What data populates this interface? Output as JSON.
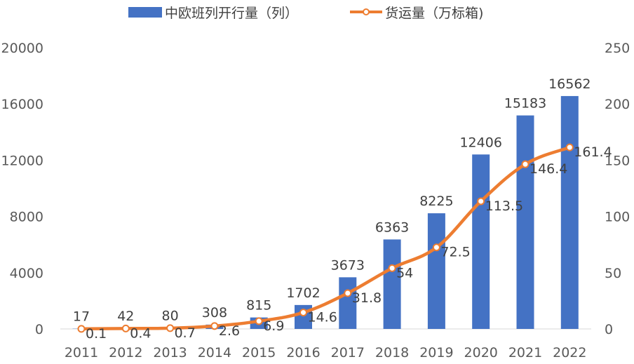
{
  "chart_data": {
    "type": "bar",
    "categories": [
      "2011",
      "2012",
      "2013",
      "2014",
      "2015",
      "2016",
      "2017",
      "2018",
      "2019",
      "2020",
      "2021",
      "2022"
    ],
    "series": [
      {
        "name": "中欧班列开行量（列）",
        "type": "bar",
        "axis": "left",
        "color": "#4472C4",
        "values": [
          17,
          42,
          80,
          308,
          815,
          1702,
          3673,
          6363,
          8225,
          12406,
          15183,
          16562
        ],
        "labels": [
          "17",
          "42",
          "80",
          "308",
          "815",
          "1702",
          "3673",
          "6363",
          "8225",
          "12406",
          "15183",
          "16562"
        ]
      },
      {
        "name": "货运量（万标箱)",
        "type": "line",
        "axis": "right",
        "color": "#ED7D31",
        "values": [
          0.1,
          0.4,
          0.7,
          2.6,
          6.9,
          14.6,
          31.8,
          54,
          72.5,
          113.5,
          146.4,
          161.4
        ],
        "labels": [
          "0.1",
          "0.4",
          "0.7",
          "2.6",
          "6.9",
          "14.6",
          "31.8",
          "54",
          "72.5",
          "113.5",
          "146.4",
          "161.4"
        ]
      }
    ],
    "ylim_left": [
      0,
      20000
    ],
    "ylim_right": [
      0,
      250
    ],
    "yticks_left": [
      "0",
      "4000",
      "8000",
      "12000",
      "16000",
      "20000"
    ],
    "yticks_right": [
      "0",
      "50",
      "100",
      "150",
      "200",
      "250"
    ],
    "legend_position": "top",
    "grid": false
  }
}
